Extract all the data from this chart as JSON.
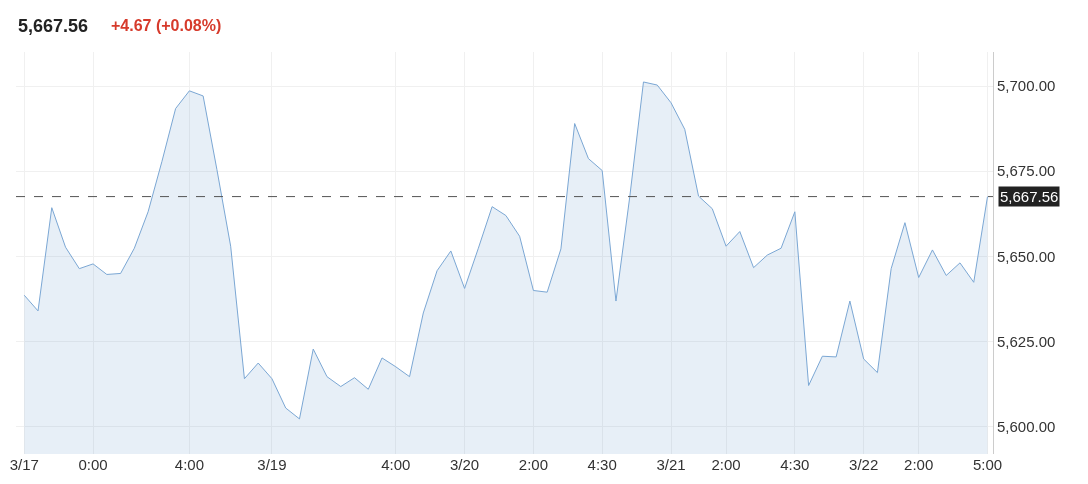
{
  "chart_data": {
    "type": "area",
    "title": "5,667.56",
    "subtitle": "+4.67 (+0.08%)",
    "categories": [
      "3/17",
      null,
      null,
      null,
      null,
      "0:00",
      null,
      null,
      null,
      null,
      null,
      null,
      "4:00",
      null,
      null,
      null,
      null,
      null,
      "3/19",
      null,
      null,
      null,
      null,
      null,
      null,
      null,
      null,
      "4:00",
      null,
      null,
      null,
      null,
      "3/20",
      null,
      null,
      null,
      null,
      "2:00",
      null,
      null,
      null,
      null,
      "4:30",
      null,
      null,
      null,
      null,
      "3/21",
      null,
      null,
      null,
      "2:00",
      null,
      null,
      null,
      null,
      "4:30",
      null,
      null,
      null,
      null,
      "3/22",
      null,
      null,
      null,
      "2:00",
      null,
      null,
      null,
      null,
      "5:00"
    ],
    "series": [
      {
        "color": "#7ba7d4",
        "values": [
          5638.6,
          5634,
          5664.3,
          5652.7,
          5646.4,
          5647.8,
          5644.7,
          5645,
          5652.4,
          5663.1,
          5677.8,
          5693.4,
          5698.6,
          5697.1,
          5675.5,
          5653,
          5614.1,
          5618.7,
          5614.1,
          5605.5,
          5602.3,
          5622.8,
          5614.7,
          5611.8,
          5614.4,
          5611,
          5620.2,
          5617.6,
          5614.7,
          5633.4,
          5645.8,
          5651.6,
          5640.6,
          5652.4,
          5664.6,
          5662,
          5655.9,
          5640,
          5639.5,
          5652.2,
          5689,
          5678.7,
          5675.2,
          5636.9,
          5667.4,
          5701.2,
          5700.3,
          5695.1,
          5687.3,
          5667.7,
          5664,
          5653,
          5657.3,
          5646.7,
          5650.4,
          5652.4,
          5663.1,
          5612.1,
          5620.7,
          5620.5,
          5636.9,
          5619.9,
          5615.9,
          5646.4,
          5659.9,
          5643.8,
          5651.9,
          5644.4,
          5648.1,
          5642.4,
          5667.56
        ]
      }
    ],
    "ylim": [
      5592,
      5710
    ],
    "yticks": [
      {
        "value": 5600,
        "label": "5,600.00"
      },
      {
        "value": 5625,
        "label": "5,625.00"
      },
      {
        "value": 5650,
        "label": "5,650.00"
      },
      {
        "value": 5675,
        "label": "5,675.00"
      },
      {
        "value": 5700,
        "label": "5,700.00"
      }
    ],
    "ref_lines": [
      {
        "axis": "y",
        "value": 5667.56,
        "label": "5,667.56",
        "color": "#555555",
        "line_style": "dashed"
      }
    ],
    "grid": true,
    "legend": false
  }
}
